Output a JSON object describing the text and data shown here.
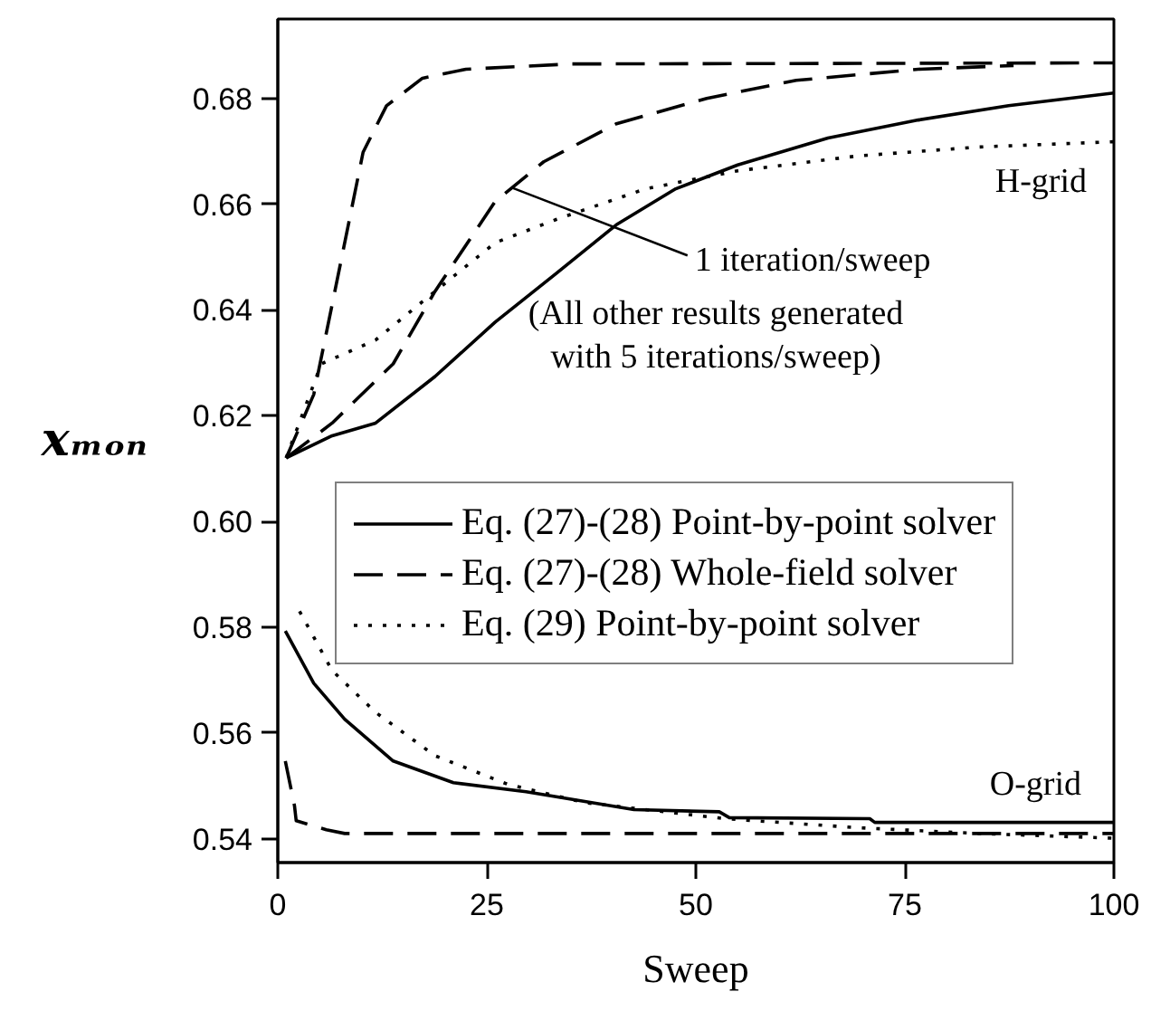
{
  "chart_data": {
    "type": "line",
    "xlabel": "Sweep",
    "ylabel": "xₘₒₙ",
    "xlim": [
      0,
      100
    ],
    "ylim": [
      0.5355,
      0.695
    ],
    "xticks": [
      0,
      25,
      50,
      75,
      100
    ],
    "yticks": [
      {
        "value": 0.54,
        "label": "0.54"
      },
      {
        "value": 0.56,
        "label": "0.56"
      },
      {
        "value": 0.58,
        "label": "0.58"
      },
      {
        "value": 0.6,
        "label": "0.60"
      },
      {
        "value": 0.62,
        "label": "0.62"
      },
      {
        "value": 0.64,
        "label": "0.64"
      },
      {
        "value": 0.66,
        "label": "0.66"
      },
      {
        "value": 0.68,
        "label": "0.68"
      }
    ],
    "grid": false,
    "legend": "center",
    "annotations": [
      {
        "text": "1 iteration/sweep",
        "x": 28,
        "y": 0.6631
      },
      "(All other results generated with 5 iterations/sweep)",
      "H-grid",
      "O-grid"
    ],
    "series": [
      {
        "name": "Eq. (27)-(28) Point-by-point solver",
        "color": "#000000",
        "line_style": "solid",
        "x": [
          1,
          6.5,
          11.7,
          18.8,
          26,
          33.3,
          40.5,
          47.6,
          55,
          65.8,
          76.6,
          87.4,
          100
        ],
        "values": [
          0.612,
          0.6162,
          0.6186,
          0.6274,
          0.6377,
          0.6469,
          0.6561,
          0.6629,
          0.6674,
          0.6725,
          0.6759,
          0.6786,
          0.681
        ]
      },
      {
        "name": "Eq. (27)-(28) Whole-field solver",
        "color": "#000000",
        "line_style": "dashed",
        "x": [
          1,
          4.3,
          6.5,
          10.2,
          13,
          17.3,
          22.5,
          35,
          100
        ],
        "values": [
          0.612,
          0.624,
          0.641,
          0.6698,
          0.6786,
          0.6838,
          0.6855,
          0.6865,
          0.6867
        ]
      },
      {
        "name": "Eq. (29) Point-by-point solver",
        "color": "#000000",
        "line_style": "dotted",
        "x": [
          1,
          5.2,
          11.7,
          18.8,
          26,
          33.3,
          44,
          55,
          69.3,
          83.8,
          100
        ],
        "values": [
          0.612,
          0.6298,
          0.6343,
          0.6435,
          0.6527,
          0.6571,
          0.6629,
          0.6663,
          0.6691,
          0.6708,
          0.6718
        ]
      },
      {
        "color": "#000000",
        "line_style": "dashed",
        "x": [
          1,
          6.5,
          13.8,
          18.8,
          26,
          31.8,
          40.5,
          51.3,
          62,
          76.6,
          88
        ],
        "values": [
          0.612,
          0.6186,
          0.6298,
          0.6435,
          0.6605,
          0.668,
          0.6752,
          0.68,
          0.6834,
          0.6855,
          0.6862
        ]
      },
      {
        "color": "#000000",
        "line_style": "solid",
        "x": [
          0.9,
          4.3,
          8,
          13.8,
          21,
          29.7,
          42.6,
          52.8,
          54,
          70.8,
          71.4,
          100
        ],
        "values": [
          0.5793,
          0.5694,
          0.5626,
          0.5547,
          0.5506,
          0.5489,
          0.5455,
          0.5451,
          0.544,
          0.5438,
          0.5431,
          0.5431
        ]
      },
      {
        "color": "#000000",
        "line_style": "dashed",
        "x": [
          0.9,
          2,
          2.2,
          5.8,
          8,
          100
        ],
        "values": [
          0.5547,
          0.5462,
          0.5434,
          0.5417,
          0.541,
          0.541
        ]
      },
      {
        "color": "#000000",
        "line_style": "dotted",
        "x": [
          2.6,
          6.5,
          11.7,
          18.8,
          27.5,
          36.8,
          53.5,
          69.3,
          83.8,
          100
        ],
        "values": [
          0.583,
          0.5718,
          0.5639,
          0.5557,
          0.5503,
          0.5468,
          0.5438,
          0.5421,
          0.541,
          0.5401
        ]
      }
    ]
  }
}
